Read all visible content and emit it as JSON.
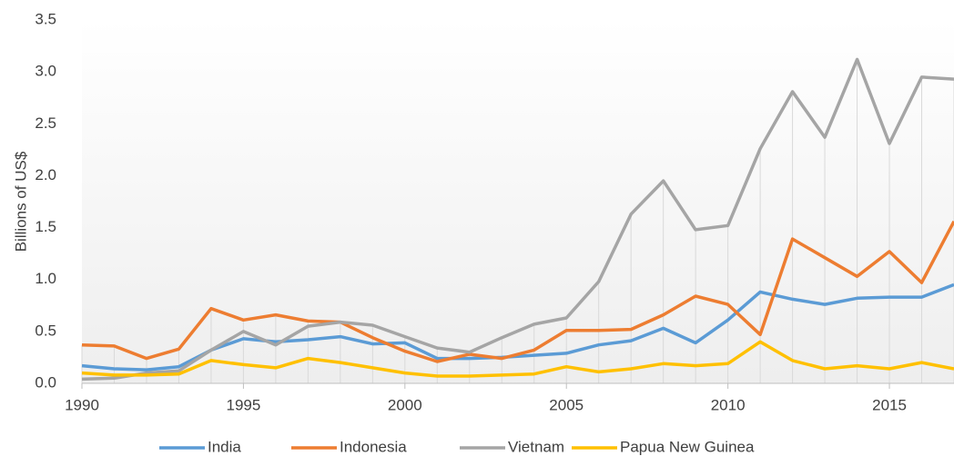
{
  "chart_data": {
    "type": "line",
    "y_label": "Billions of US$",
    "x": [
      1990,
      1991,
      1992,
      1993,
      1994,
      1995,
      1996,
      1997,
      1998,
      1999,
      2000,
      2001,
      2002,
      2003,
      2004,
      2005,
      2006,
      2007,
      2008,
      2009,
      2010,
      2011,
      2012,
      2013,
      2014,
      2015,
      2016,
      2017
    ],
    "series": [
      {
        "name": "India",
        "color": "#5b9bd5",
        "values": [
          0.17,
          0.14,
          0.13,
          0.16,
          0.32,
          0.43,
          0.4,
          0.42,
          0.45,
          0.38,
          0.39,
          0.24,
          0.24,
          0.25,
          0.27,
          0.29,
          0.37,
          0.41,
          0.53,
          0.39,
          0.61,
          0.88,
          0.81,
          0.76,
          0.82,
          0.83,
          0.83,
          0.95
        ]
      },
      {
        "name": "Indonesia",
        "color": "#ed7d31",
        "values": [
          0.37,
          0.36,
          0.24,
          0.33,
          0.72,
          0.61,
          0.66,
          0.6,
          0.59,
          0.44,
          0.31,
          0.21,
          0.28,
          0.24,
          0.32,
          0.51,
          0.51,
          0.52,
          0.66,
          0.84,
          0.76,
          0.47,
          1.39,
          1.21,
          1.03,
          1.27,
          0.97,
          1.56
        ]
      },
      {
        "name": "Vietnam",
        "color": "#a5a5a5",
        "values": [
          0.04,
          0.05,
          0.1,
          0.12,
          0.32,
          0.5,
          0.37,
          0.55,
          0.59,
          0.56,
          0.45,
          0.34,
          0.3,
          0.44,
          0.57,
          0.63,
          0.98,
          1.63,
          1.95,
          1.48,
          1.52,
          2.26,
          2.81,
          2.37,
          3.12,
          2.31,
          2.95,
          2.93
        ]
      },
      {
        "name": "Papua New Guinea",
        "color": "#ffc000",
        "values": [
          0.1,
          0.08,
          0.08,
          0.09,
          0.22,
          0.18,
          0.15,
          0.24,
          0.2,
          0.15,
          0.1,
          0.07,
          0.07,
          0.08,
          0.09,
          0.16,
          0.11,
          0.14,
          0.19,
          0.17,
          0.19,
          0.4,
          0.22,
          0.14,
          0.17,
          0.14,
          0.2,
          0.14
        ]
      }
    ],
    "xlim": [
      1990,
      2017
    ],
    "xticks": [
      1990,
      1995,
      2000,
      2005,
      2010,
      2015
    ],
    "ylim": [
      0,
      3.5
    ],
    "yticks": [
      {
        "value": 0,
        "label": "0.0"
      },
      0.5,
      {
        "value": 1,
        "label": "1.0"
      },
      1.5,
      {
        "value": 2,
        "label": "2.0"
      },
      2.5,
      {
        "value": 3,
        "label": "3.0"
      },
      3.5
    ],
    "drop_lines": true,
    "legend": "bottom"
  }
}
